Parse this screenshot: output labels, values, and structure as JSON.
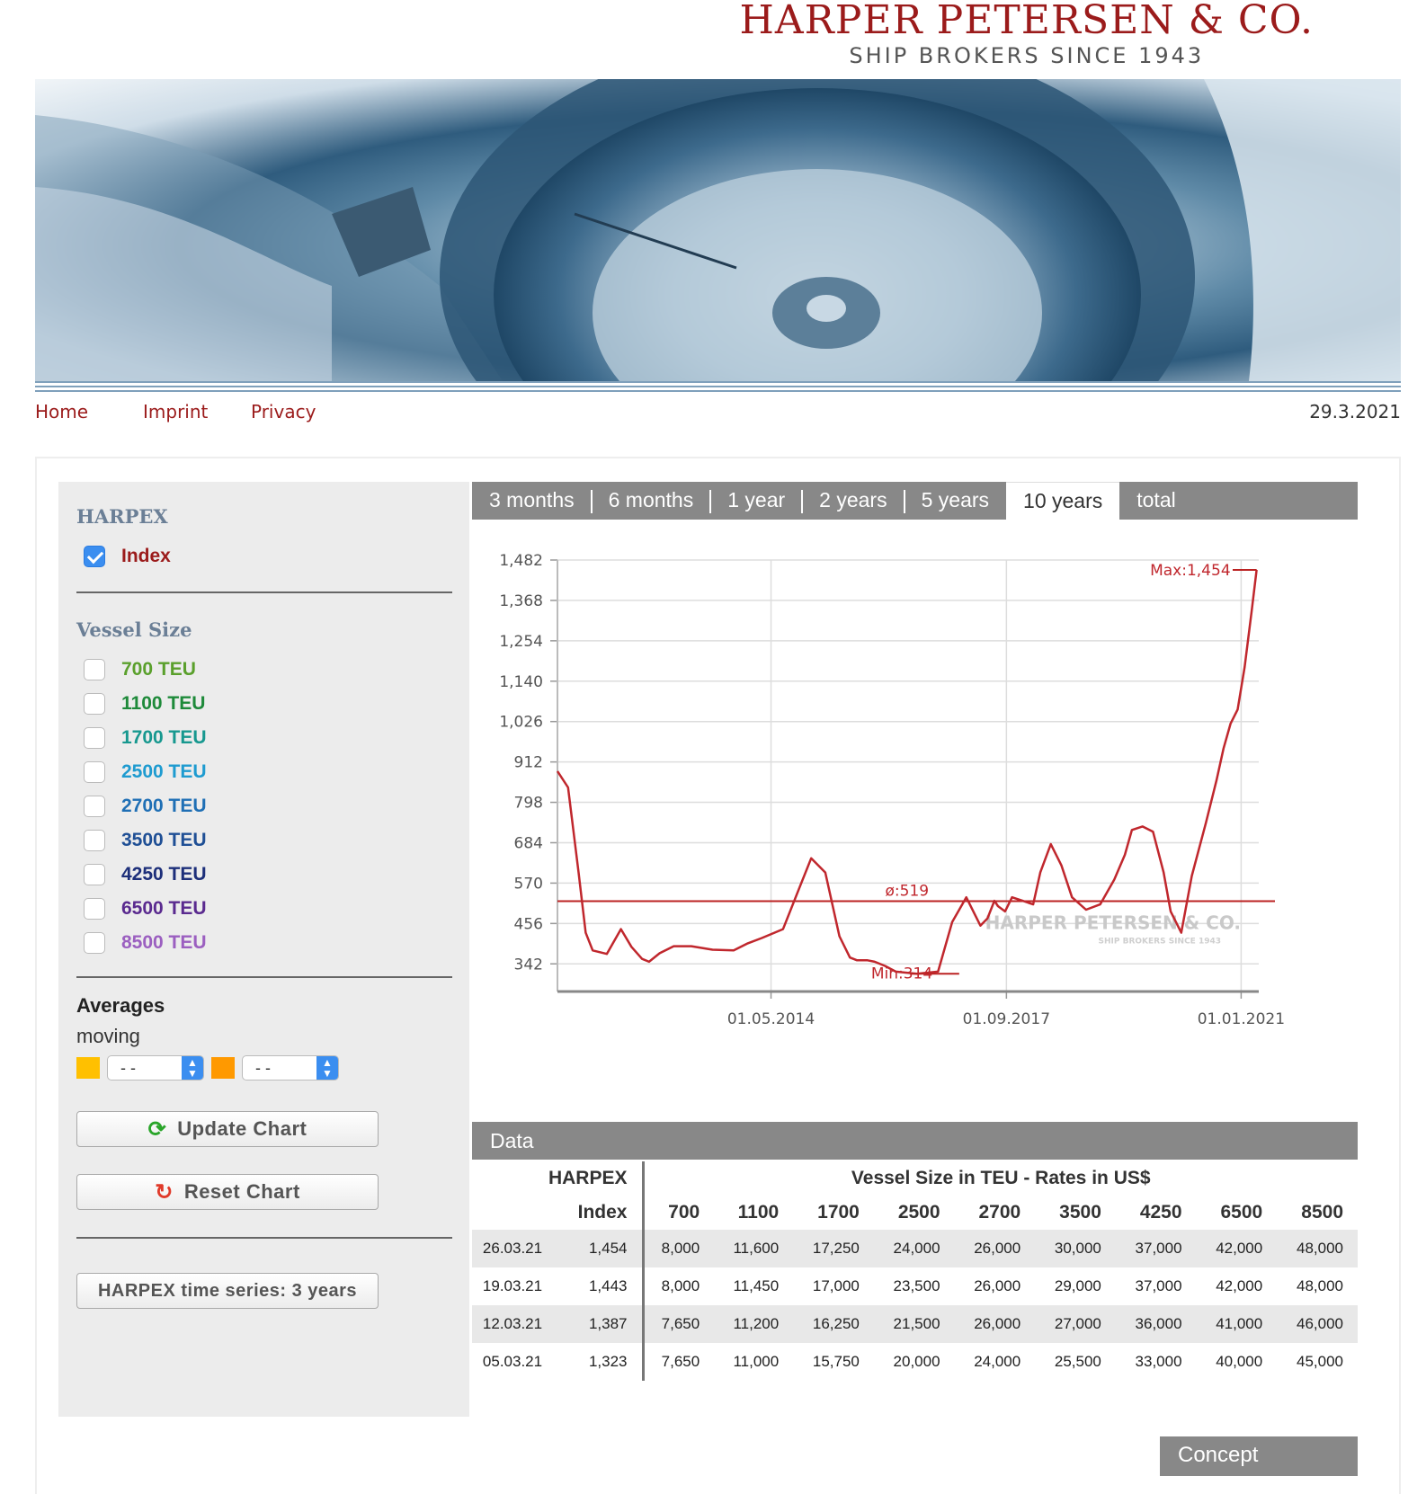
{
  "header": {
    "logo_main": "HARPER PETERSEN & CO.",
    "logo_sub": "SHIP BROKERS SINCE 1943"
  },
  "nav": {
    "items": [
      "Home",
      "Imprint",
      "Privacy"
    ],
    "date": "29.3.2021"
  },
  "sidebar": {
    "harpex_heading": "HARPEX",
    "index_label": "Index",
    "index_checked": true,
    "vessel_heading": "Vessel Size",
    "vessels": [
      {
        "label": "700 TEU",
        "color": "#5aa02c"
      },
      {
        "label": "1100 TEU",
        "color": "#1e8a3a"
      },
      {
        "label": "1700 TEU",
        "color": "#17988f"
      },
      {
        "label": "2500 TEU",
        "color": "#1e9bd0"
      },
      {
        "label": "2700 TEU",
        "color": "#1f6fb5"
      },
      {
        "label": "3500 TEU",
        "color": "#1f4f95"
      },
      {
        "label": "4250 TEU",
        "color": "#1d2f7a"
      },
      {
        "label": "6500 TEU",
        "color": "#5a2a8f"
      },
      {
        "label": "8500 TEU",
        "color": "#9b5fc0"
      }
    ],
    "averages_title": "Averages",
    "averages_sub": "moving",
    "avg1_color": "#ffc000",
    "avg2_color": "#ff9900",
    "avg1_value": "- -",
    "avg2_value": "- -",
    "update_button": "Update Chart",
    "reset_button": "Reset Chart",
    "timeseries_button": "HARPEX time series: 3 years"
  },
  "tabs": [
    "3 months",
    "6 months",
    "1 year",
    "2 years",
    "5 years",
    "10 years",
    "total"
  ],
  "active_tab": "10 years",
  "chart_data": {
    "type": "line",
    "y_ticks": [
      "1,482",
      "1,368",
      "1,254",
      "1,140",
      "1,026",
      "912",
      "798",
      "684",
      "570",
      "456",
      "342"
    ],
    "y_tick_values": [
      1482,
      1368,
      1254,
      1140,
      1026,
      912,
      798,
      684,
      570,
      456,
      342
    ],
    "x_ticks": [
      "01.05.2014",
      "01.09.2017",
      "01.01.2021"
    ],
    "x_tick_values": [
      2014.33,
      2017.67,
      2021.0
    ],
    "xlim": [
      2011.3,
      2021.25
    ],
    "ylim": [
      264,
      1482
    ],
    "series": [
      {
        "color": "#c0272d",
        "x": [
          2011.3,
          2011.45,
          2011.6,
          2011.7,
          2011.8,
          2012.0,
          2012.2,
          2012.35,
          2012.5,
          2012.6,
          2012.75,
          2012.95,
          2013.2,
          2013.5,
          2013.8,
          2014.0,
          2014.2,
          2014.5,
          2014.7,
          2014.9,
          2015.1,
          2015.3,
          2015.45,
          2015.55,
          2015.7,
          2015.8,
          2015.95,
          2016.1,
          2016.4,
          2016.7,
          2016.9,
          2017.1,
          2017.3,
          2017.4,
          2017.5,
          2017.55,
          2017.65,
          2017.75,
          2017.9,
          2018.05,
          2018.15,
          2018.3,
          2018.45,
          2018.6,
          2018.8,
          2019.0,
          2019.2,
          2019.35,
          2019.45,
          2019.6,
          2019.75,
          2019.9,
          2020.0,
          2020.15,
          2020.3,
          2020.5,
          2020.65,
          2020.75,
          2020.85,
          2020.95,
          2021.05,
          2021.15,
          2021.22
        ],
        "values": [
          886,
          840,
          600,
          430,
          380,
          370,
          440,
          390,
          356,
          348,
          372,
          392,
          392,
          382,
          380,
          400,
          415,
          440,
          540,
          640,
          600,
          420,
          360,
          352,
          352,
          348,
          336,
          320,
          314,
          320,
          460,
          530,
          450,
          470,
          520,
          505,
          490,
          530,
          520,
          510,
          600,
          680,
          620,
          530,
          495,
          510,
          580,
          650,
          720,
          730,
          715,
          600,
          490,
          430,
          590,
          740,
          860,
          950,
          1020,
          1060,
          1180,
          1340,
          1454
        ]
      }
    ],
    "average": 519,
    "average_label": "ø:519",
    "min": 314,
    "min_label": "Min:314",
    "max": 1454,
    "max_label": "Max:1,454",
    "watermark": "HARPER PETERSEN & CO.",
    "watermark_sub": "SHIP BROKERS SINCE 1943",
    "grid": true
  },
  "data_table": {
    "title": "Data",
    "col_harpex": "HARPEX",
    "col_vessel": "Vessel Size in TEU - Rates in US$",
    "col_index": "Index",
    "sizes": [
      "700",
      "1100",
      "1700",
      "2500",
      "2700",
      "3500",
      "4250",
      "6500",
      "8500"
    ],
    "rows": [
      {
        "date": "26.03.21",
        "index": "1,454",
        "rates": [
          "8,000",
          "11,600",
          "17,250",
          "24,000",
          "26,000",
          "30,000",
          "37,000",
          "42,000",
          "48,000"
        ]
      },
      {
        "date": "19.03.21",
        "index": "1,443",
        "rates": [
          "8,000",
          "11,450",
          "17,000",
          "23,500",
          "26,000",
          "29,000",
          "37,000",
          "42,000",
          "48,000"
        ]
      },
      {
        "date": "12.03.21",
        "index": "1,387",
        "rates": [
          "7,650",
          "11,200",
          "16,250",
          "21,500",
          "26,000",
          "27,000",
          "36,000",
          "41,000",
          "46,000"
        ]
      },
      {
        "date": "05.03.21",
        "index": "1,323",
        "rates": [
          "7,650",
          "11,000",
          "15,750",
          "20,000",
          "24,000",
          "25,500",
          "33,000",
          "40,000",
          "45,000"
        ]
      }
    ]
  },
  "concept_button": "Concept"
}
